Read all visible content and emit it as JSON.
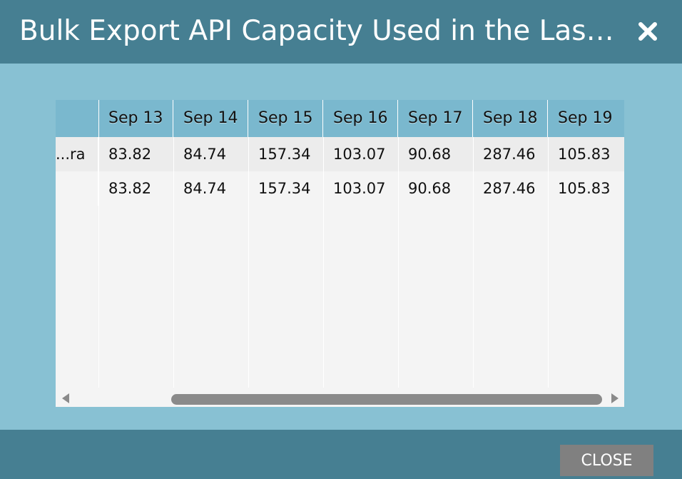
{
  "dialog": {
    "title": "Bulk Export API Capacity Used in the Last ...",
    "close_icon": "close-x-icon",
    "close_button_label": "CLOSE"
  },
  "table": {
    "columns": [
      "Sep 13",
      "Sep 14",
      "Sep 15",
      "Sep 16",
      "Sep 17",
      "Sep 18",
      "Sep 19"
    ],
    "rows": [
      {
        "label": "ra...",
        "values": [
          "83.82",
          "84.74",
          "157.34",
          "103.07",
          "90.68",
          "287.46",
          "105.83"
        ]
      },
      {
        "label": "",
        "values": [
          "83.82",
          "84.74",
          "157.34",
          "103.07",
          "90.68",
          "287.46",
          "105.83"
        ]
      }
    ]
  },
  "scrollbar": {
    "left_icon": "scroll-left-arrow-icon",
    "right_icon": "scroll-right-arrow-icon"
  },
  "colors": {
    "header_bg": "#467f92",
    "body_bg": "#88c1d3",
    "column_header_bg": "#7ab8ce",
    "close_button_bg": "#808080"
  }
}
